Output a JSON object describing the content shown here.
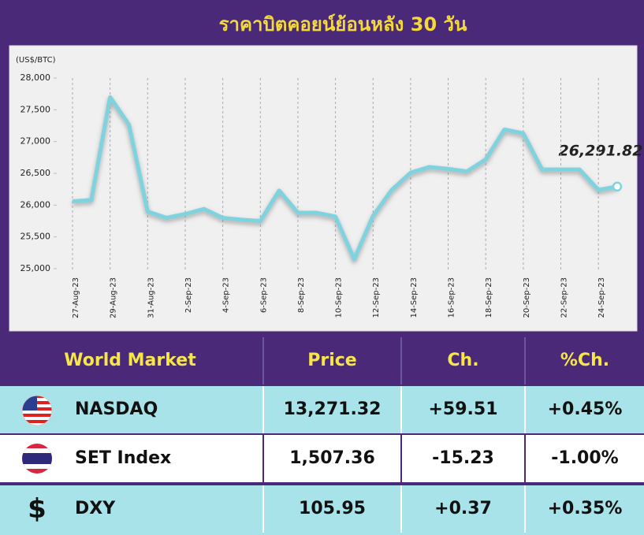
{
  "chart_data": {
    "type": "line",
    "title": "ราคาบิตคอยน์ย้อนหลัง 30 วัน",
    "y_label": "(US$/BTC)",
    "categories": [
      "27-Aug-23",
      null,
      "29-Aug-23",
      null,
      "31-Aug-23",
      null,
      "2-Sep-23",
      null,
      "4-Sep-23",
      null,
      "6-Sep-23",
      null,
      "8-Sep-23",
      null,
      "10-Sep-23",
      null,
      "12-Sep-23",
      null,
      "14-Sep-23",
      null,
      "16-Sep-23",
      null,
      "18-Sep-23",
      null,
      "20-Sep-23",
      null,
      "22-Sep-23",
      null,
      "24-Sep-23",
      null
    ],
    "values": [
      26060,
      26080,
      27700,
      27270,
      25900,
      25800,
      25860,
      25940,
      25800,
      25770,
      25750,
      26230,
      25880,
      25880,
      25820,
      25150,
      25830,
      26240,
      26510,
      26600,
      26570,
      26530,
      26720,
      27190,
      27130,
      26560,
      26560,
      26560,
      26240,
      26291.82
    ],
    "annotation": "26,291.82",
    "color": "#7fd3df",
    "ylim": [
      25000,
      28000
    ],
    "yticks": [
      {
        "value": 25000,
        "label": "25,000"
      },
      {
        "value": 25500,
        "label": "25,500"
      },
      {
        "value": 26000,
        "label": "26,000"
      },
      {
        "value": 26500,
        "label": "26,500"
      },
      {
        "value": 27000,
        "label": "27,000"
      },
      {
        "value": 27500,
        "label": "27,500"
      },
      {
        "value": 28000,
        "label": "28,000"
      }
    ],
    "grid": true
  },
  "table": {
    "header": [
      "World Market",
      "Price",
      "Ch.",
      "%Ch."
    ],
    "rows": [
      [
        "NASDAQ",
        "13,271.32",
        "+59.51",
        "+0.45%"
      ],
      [
        "SET Index",
        "1,507.36",
        "-15.23",
        "-1.00%"
      ],
      [
        "DXY",
        "105.95",
        "+0.37",
        "+0.35%"
      ]
    ],
    "dxy_symbol": "$"
  }
}
